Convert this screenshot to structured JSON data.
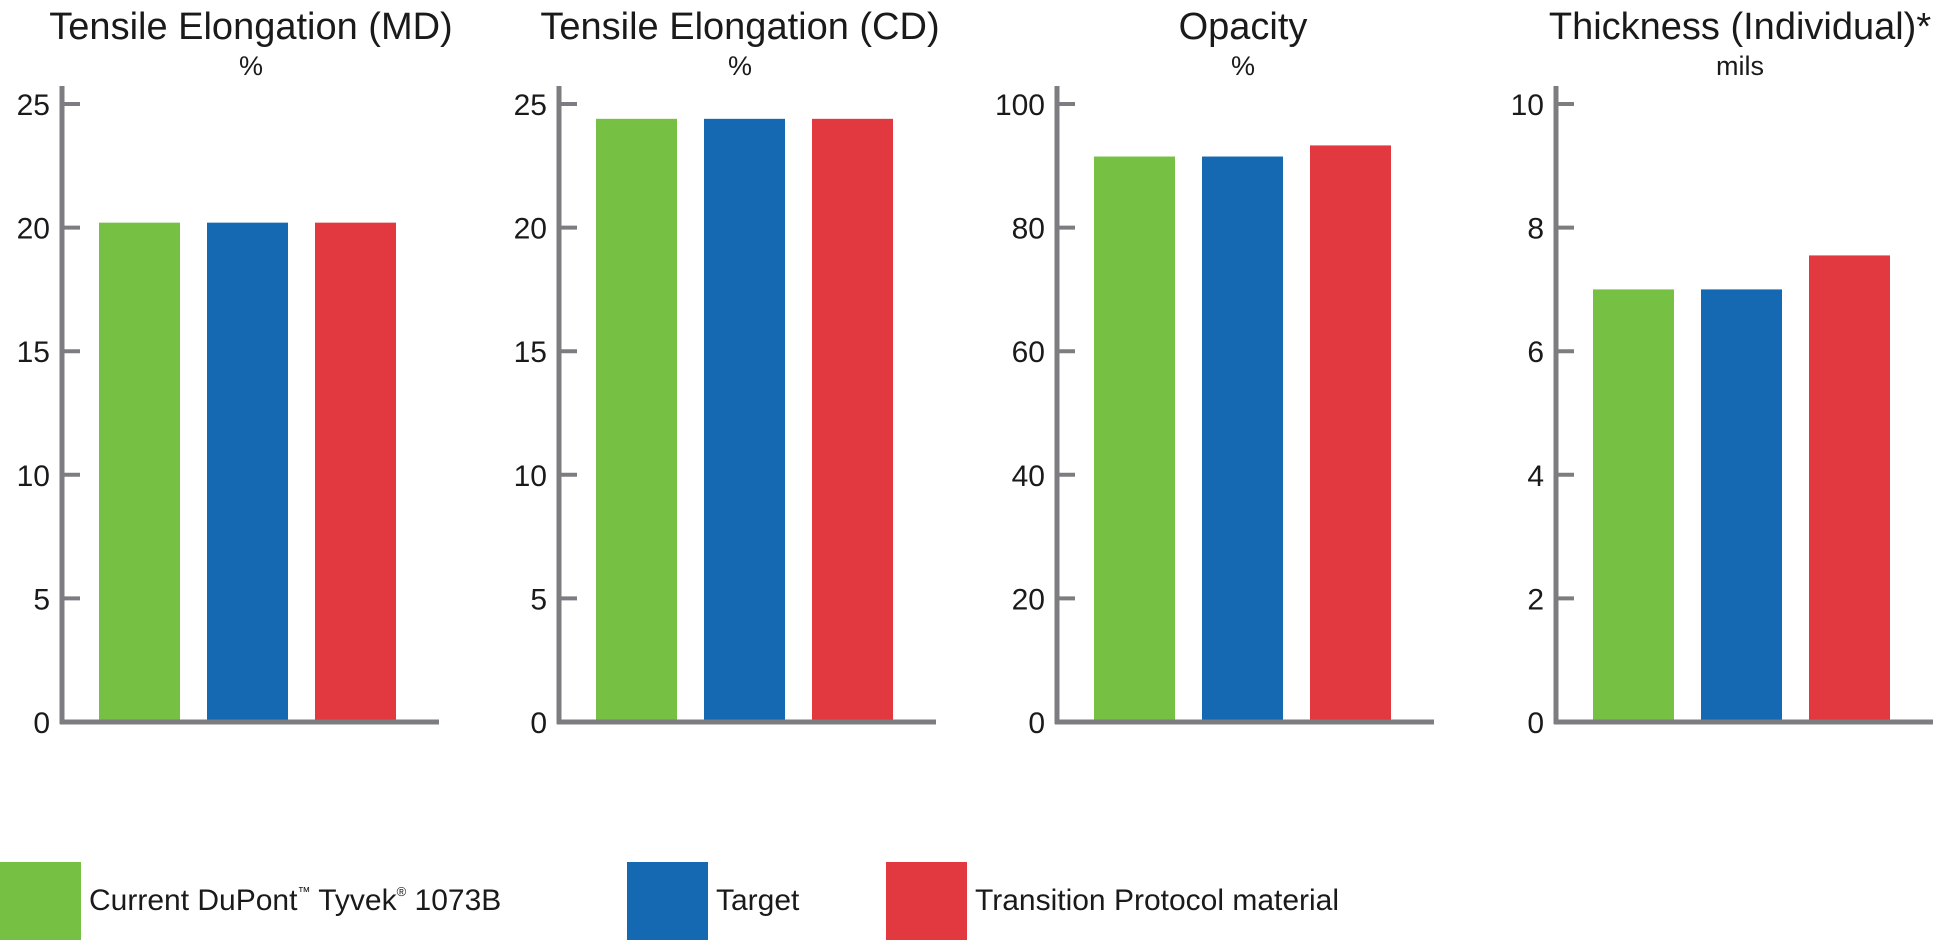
{
  "colors": {
    "series": [
      "#76c043",
      "#1569b3",
      "#e1393f"
    ],
    "axis": "#7d7c80"
  },
  "legend": {
    "items": [
      {
        "label": "Current DuPont",
        "tm": "™",
        "label2": " Tyvek",
        "reg": "®",
        "label3": " 1073B"
      },
      {
        "label": "Target"
      },
      {
        "label": "Transition Protocol material"
      }
    ]
  },
  "chart_data": [
    {
      "type": "bar",
      "title": "Tensile Elongation (MD)",
      "subtitle": "%",
      "ylim": [
        0,
        25
      ],
      "yticks": [
        0,
        5,
        10,
        15,
        20,
        25
      ],
      "series": [
        {
          "name": "Current DuPont™ Tyvek® 1073B",
          "values": [
            20.2
          ]
        },
        {
          "name": "Target",
          "values": [
            20.2
          ]
        },
        {
          "name": "Transition Protocol material",
          "values": [
            20.2
          ]
        }
      ]
    },
    {
      "type": "bar",
      "title": "Tensile Elongation (CD)",
      "subtitle": "%",
      "ylim": [
        0,
        25
      ],
      "yticks": [
        0,
        5,
        10,
        15,
        20,
        25
      ],
      "series": [
        {
          "name": "Current DuPont™ Tyvek® 1073B",
          "values": [
            24.4
          ]
        },
        {
          "name": "Target",
          "values": [
            24.4
          ]
        },
        {
          "name": "Transition Protocol material",
          "values": [
            24.4
          ]
        }
      ]
    },
    {
      "type": "bar",
      "title": "Opacity",
      "subtitle": "%",
      "ylim": [
        0,
        100
      ],
      "yticks": [
        0,
        20,
        40,
        60,
        80,
        100
      ],
      "series": [
        {
          "name": "Current DuPont™ Tyvek® 1073B",
          "values": [
            91.5
          ]
        },
        {
          "name": "Target",
          "values": [
            91.5
          ]
        },
        {
          "name": "Transition Protocol material",
          "values": [
            93.3
          ]
        }
      ]
    },
    {
      "type": "bar",
      "title": "Thickness (Individual)*",
      "subtitle": "mils",
      "ylim": [
        0,
        10
      ],
      "yticks": [
        0,
        2,
        4,
        6,
        8,
        10
      ],
      "series": [
        {
          "name": "Current DuPont™ Tyvek® 1073B",
          "values": [
            7.0
          ]
        },
        {
          "name": "Target",
          "values": [
            7.0
          ]
        },
        {
          "name": "Transition Protocol material",
          "values": [
            7.55
          ]
        }
      ]
    }
  ]
}
